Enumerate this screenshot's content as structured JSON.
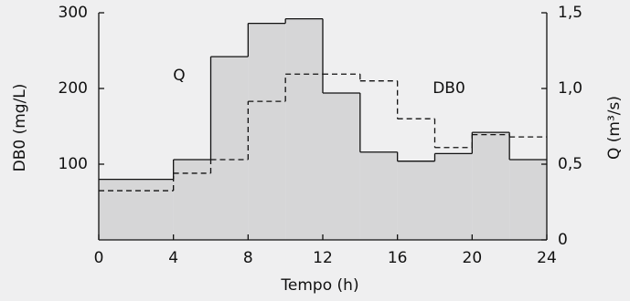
{
  "chart_data": {
    "type": "step",
    "xlabel": "Tempo (h)",
    "ylabel": "DB0 (mg/L)",
    "y2label": "Q (m³/s)",
    "x": [
      0,
      4,
      6,
      8,
      10,
      12,
      14,
      16,
      18,
      20,
      22
    ],
    "xlim": [
      0,
      24
    ],
    "xticks": [
      0,
      4,
      8,
      12,
      16,
      20,
      24
    ],
    "ylim": [
      0,
      300
    ],
    "yticks": [
      100,
      200,
      300
    ],
    "y2lim": [
      0,
      1.5
    ],
    "y2ticks": [
      {
        "value": 0,
        "label": "0"
      },
      {
        "value": 0.5,
        "label": "0,5"
      },
      {
        "value": 1.0,
        "label": "1,0"
      },
      {
        "value": 1.5,
        "label": "1,5"
      }
    ],
    "series": [
      {
        "name": "Q",
        "axis": "y2",
        "color": "#d6d6d7",
        "values": [
          0.4,
          0.53,
          1.21,
          1.43,
          1.46,
          0.97,
          0.58,
          0.52,
          0.57,
          0.71,
          0.53
        ]
      },
      {
        "name": "DB0",
        "color": "#111111",
        "values": [
          65,
          88,
          106,
          183,
          219,
          219,
          210,
          160,
          122,
          139,
          136
        ]
      }
    ]
  }
}
